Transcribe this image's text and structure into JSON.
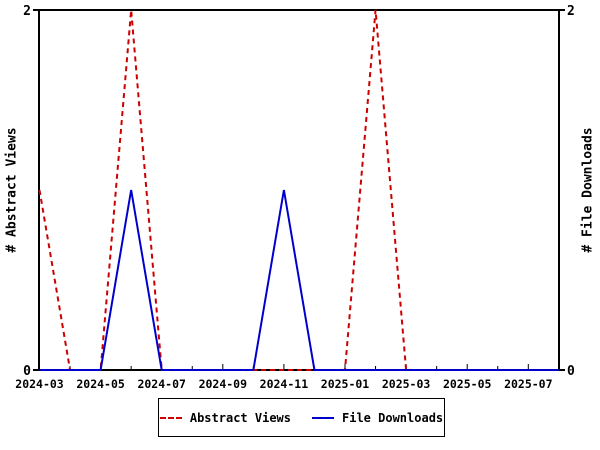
{
  "chart_data": {
    "type": "line",
    "x": [
      "2024-03",
      "2024-04",
      "2024-05",
      "2024-06",
      "2024-07",
      "2024-08",
      "2024-09",
      "2024-10",
      "2024-11",
      "2024-12",
      "2025-01",
      "2025-02",
      "2025-03",
      "2025-04",
      "2025-05",
      "2025-06",
      "2025-07"
    ],
    "series": [
      {
        "name": "Abstract Views",
        "axis": "left",
        "color": "#cc0000",
        "line_style": "dashed",
        "values": [
          1,
          0,
          0,
          2,
          0,
          0,
          0,
          0,
          0,
          0,
          0,
          2,
          0,
          0,
          0,
          0,
          0
        ]
      },
      {
        "name": "File Downloads",
        "axis": "right",
        "color": "#0000cc",
        "line_style": "solid",
        "values": [
          0,
          0,
          0,
          1,
          0,
          0,
          0,
          0,
          1,
          0,
          0,
          0,
          0,
          0,
          0,
          0,
          0
        ]
      }
    ],
    "ylabel_left": "# Abstract Views",
    "ylabel_right": "# File Downloads",
    "ylim": [
      0,
      2
    ],
    "ytick_labels": [
      "0",
      "2"
    ],
    "xtick_labels": [
      "2024-03",
      "2024-05",
      "2024-07",
      "2024-09",
      "2024-11",
      "2025-01",
      "2025-03",
      "2025-05",
      "2025-07"
    ],
    "grid": false,
    "legend_position": "bottom-center",
    "background_color": "#ffffff",
    "axis_color": "#000000"
  }
}
